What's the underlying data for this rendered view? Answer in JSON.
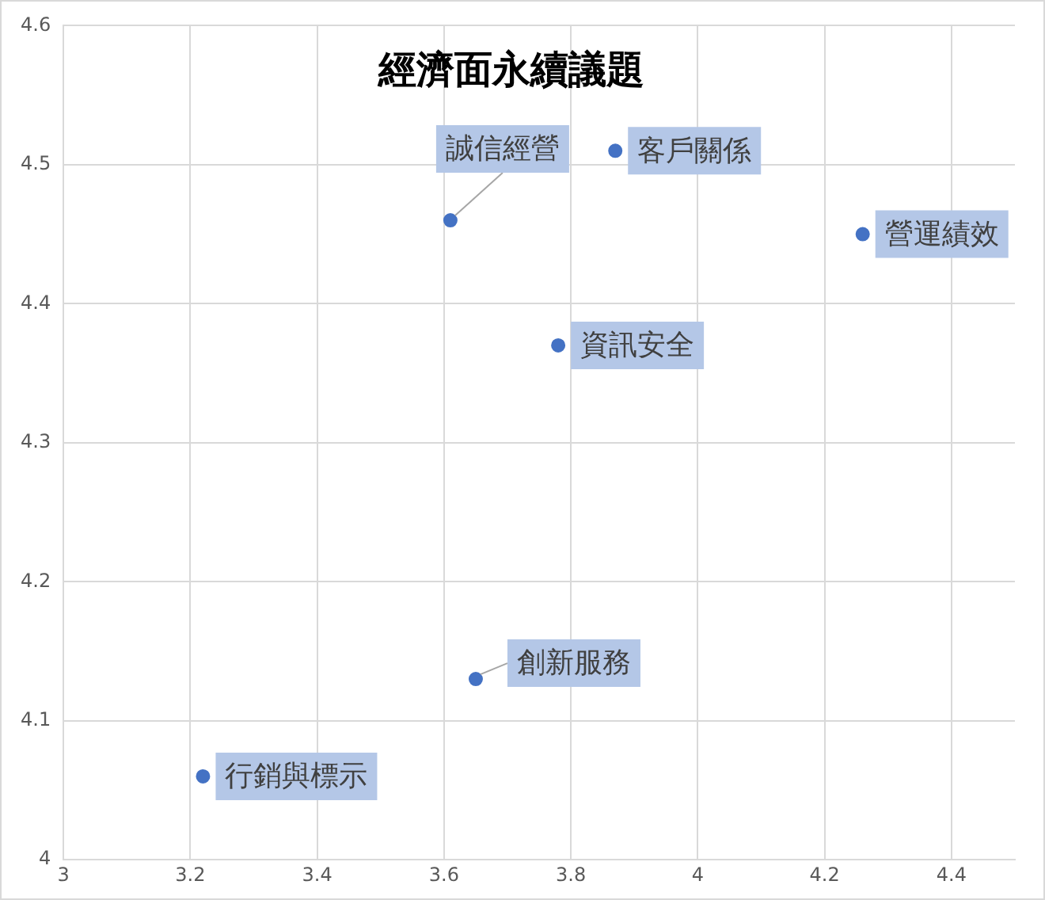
{
  "chart_data": {
    "type": "scatter",
    "title": "經濟面永續議題",
    "x": [
      3.61,
      3.87,
      4.26,
      3.78,
      3.65,
      3.22
    ],
    "series": [
      {
        "color": "#4472c4",
        "values": [
          4.46,
          4.51,
          4.45,
          4.37,
          4.13,
          4.06
        ]
      }
    ],
    "xlim": [
      3,
      4.5
    ],
    "xticks": [
      3,
      3.2,
      3.4,
      3.6,
      3.8,
      4,
      4.2,
      4.4
    ],
    "ylim": [
      4,
      4.6
    ],
    "yticks": [
      4,
      4.1,
      4.2,
      4.3,
      4.4,
      4.5,
      4.6
    ],
    "grid": true,
    "legend": false,
    "marker": "circle",
    "annotations": [
      {
        "text": "誠信經營",
        "x": 3.61,
        "y": 4.46
      },
      {
        "text": "客戶關係",
        "x": 3.87,
        "y": 4.51
      },
      {
        "text": "營運績效",
        "x": 4.26,
        "y": 4.45
      },
      {
        "text": "資訊安全",
        "x": 3.78,
        "y": 4.37
      },
      {
        "text": "創新服務",
        "x": 3.65,
        "y": 4.13
      },
      {
        "text": "行銷與標示",
        "x": 3.22,
        "y": 4.06
      }
    ]
  }
}
